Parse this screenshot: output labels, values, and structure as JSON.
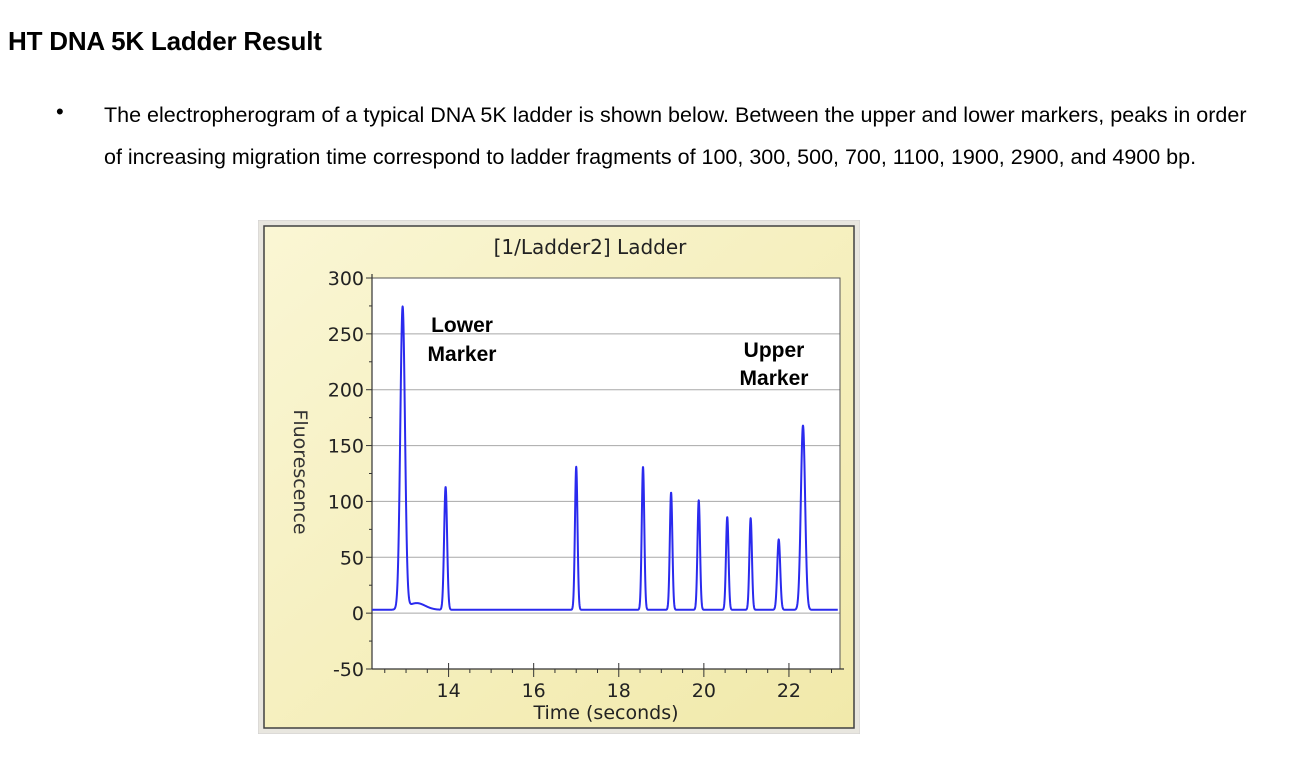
{
  "heading": "HT DNA 5K Ladder Result",
  "bullet_symbol": "•",
  "paragraph": "The electropherogram of a typical DNA 5K ladder is shown below. Between the upper and lower markers, peaks in order of increasing migration time correspond to ladder fragments of 100, 300, 500, 700, 1100, 1900, 2900, and 4900 bp.",
  "colors": {
    "panel_fill": "#f7f2c6",
    "panel_border": "#404040",
    "trace": "#2a2aee",
    "grid": "#a8a8a8"
  },
  "chart_data": {
    "type": "line",
    "title": "[1/Ladder2] Ladder",
    "xlabel": "Time (seconds)",
    "ylabel": "Fluorescence",
    "xlim": [
      12.2,
      23.2
    ],
    "ylim": [
      -50,
      300
    ],
    "x_ticks": [
      14,
      16,
      18,
      20,
      22
    ],
    "x_tick_labels": [
      "14",
      "16",
      "18",
      "20",
      "22"
    ],
    "y_ticks": [
      -50,
      0,
      50,
      100,
      150,
      200,
      250,
      300
    ],
    "y_tick_labels": [
      "-50",
      "0",
      "50",
      "100",
      "150",
      "200",
      "250",
      "300"
    ],
    "grid": true,
    "baseline": 3,
    "peaks": [
      {
        "time": 12.92,
        "height": 270,
        "width": 0.055
      },
      {
        "time": 13.93,
        "height": 110,
        "width": 0.035
      },
      {
        "time": 17.0,
        "height": 128,
        "width": 0.03
      },
      {
        "time": 18.57,
        "height": 128,
        "width": 0.03
      },
      {
        "time": 19.23,
        "height": 105,
        "width": 0.03
      },
      {
        "time": 19.88,
        "height": 98,
        "width": 0.03
      },
      {
        "time": 20.55,
        "height": 83,
        "width": 0.03
      },
      {
        "time": 21.1,
        "height": 82,
        "width": 0.03
      },
      {
        "time": 21.76,
        "height": 63,
        "width": 0.035
      },
      {
        "time": 22.33,
        "height": 165,
        "width": 0.05
      }
    ],
    "annotations": [
      {
        "line1": "Lower",
        "line2": "Marker"
      },
      {
        "line1": "Upper",
        "line2": "Marker"
      }
    ]
  }
}
